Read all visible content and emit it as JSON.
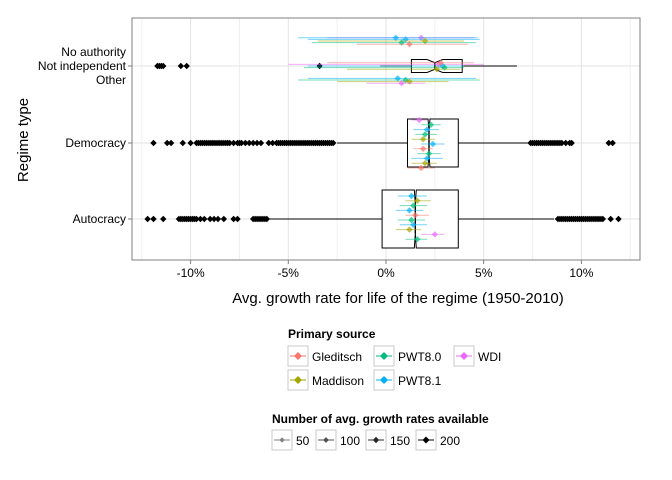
{
  "chart_data": {
    "type": "boxplot",
    "title": "",
    "xlabel": "Avg. growth rate for life of the regime (1950-2010)",
    "ylabel": "Regime type",
    "xlim": [
      -0.13,
      0.13
    ],
    "x_ticks": [
      {
        "value": -0.1,
        "label": "-10%"
      },
      {
        "value": -0.05,
        "label": "-5%"
      },
      {
        "value": 0.0,
        "label": "0%"
      },
      {
        "value": 0.05,
        "label": "5%"
      },
      {
        "value": 0.1,
        "label": "10%"
      }
    ],
    "categories": [
      {
        "key": "other_group",
        "lines": [
          "No authority",
          "Not independent",
          "Other"
        ]
      },
      {
        "key": "democracy",
        "lines": [
          "Democracy"
        ]
      },
      {
        "key": "autocracy",
        "lines": [
          "Autocracy"
        ]
      }
    ],
    "boxes": [
      {
        "category": "other_group",
        "q1": 0.013,
        "median": 0.025,
        "q3": 0.039,
        "notch_low": 0.021,
        "notch_high": 0.029,
        "whisker_low": -0.003,
        "whisker_high": 0.067
      },
      {
        "category": "democracy",
        "q1": 0.011,
        "median": 0.022,
        "q3": 0.037,
        "notch_low": 0.0215,
        "notch_high": 0.0225,
        "whisker_low": -0.025,
        "whisker_high": 0.073
      },
      {
        "category": "autocracy",
        "q1": -0.002,
        "median": 0.015,
        "q3": 0.037,
        "notch_low": 0.0145,
        "notch_high": 0.0155,
        "whisker_low": -0.06,
        "whisker_high": 0.086
      }
    ],
    "outliers": [
      {
        "category": "other_group",
        "values": [
          -0.117,
          -0.116,
          -0.115,
          -0.114,
          -0.105,
          -0.102,
          -0.034
        ]
      },
      {
        "category": "democracy",
        "values": [
          -0.119,
          -0.112,
          -0.11,
          -0.104,
          -0.1,
          -0.097,
          -0.096,
          -0.095,
          -0.094,
          -0.093,
          -0.092,
          -0.091,
          -0.09,
          -0.089,
          -0.088,
          -0.087,
          -0.086,
          -0.085,
          -0.084,
          -0.083,
          -0.082,
          -0.081,
          -0.08,
          -0.078,
          -0.076,
          -0.075,
          -0.074,
          -0.072,
          -0.07,
          -0.068,
          -0.066,
          -0.064,
          -0.06,
          -0.058,
          -0.056,
          -0.055,
          -0.054,
          -0.053,
          -0.052,
          -0.051,
          -0.05,
          -0.049,
          -0.048,
          -0.047,
          -0.046,
          -0.045,
          -0.044,
          -0.043,
          -0.042,
          -0.041,
          -0.04,
          -0.039,
          -0.038,
          -0.037,
          -0.036,
          -0.035,
          -0.034,
          -0.033,
          -0.032,
          -0.031,
          -0.03,
          -0.029,
          -0.028,
          -0.027,
          0.074,
          0.075,
          0.076,
          0.077,
          0.078,
          0.079,
          0.08,
          0.081,
          0.082,
          0.083,
          0.084,
          0.085,
          0.086,
          0.087,
          0.088,
          0.089,
          0.09,
          0.092,
          0.094,
          0.095,
          0.114,
          0.116
        ]
      },
      {
        "category": "autocracy",
        "values": [
          -0.122,
          -0.119,
          -0.114,
          -0.106,
          -0.105,
          -0.104,
          -0.103,
          -0.102,
          -0.101,
          -0.1,
          -0.099,
          -0.098,
          -0.097,
          -0.095,
          -0.093,
          -0.09,
          -0.088,
          -0.086,
          -0.083,
          -0.078,
          -0.076,
          -0.068,
          -0.067,
          -0.066,
          -0.065,
          -0.064,
          -0.063,
          -0.062,
          -0.061,
          0.088,
          0.089,
          0.09,
          0.091,
          0.092,
          0.093,
          0.094,
          0.095,
          0.096,
          0.097,
          0.098,
          0.099,
          0.1,
          0.101,
          0.102,
          0.103,
          0.104,
          0.105,
          0.106,
          0.107,
          0.108,
          0.109,
          0.11,
          0.111,
          0.115,
          0.119
        ]
      }
    ],
    "source_estimates": [
      {
        "category": "other_group",
        "row": "No authority",
        "source": "WDI",
        "value": 0.018,
        "lo": -0.03,
        "hi": 0.045
      },
      {
        "category": "other_group",
        "row": "No authority",
        "source": "PWT8.1",
        "value": 0.01,
        "lo": -0.04,
        "hi": 0.048
      },
      {
        "category": "other_group",
        "row": "No authority",
        "source": "Maddison",
        "value": 0.02,
        "lo": -0.035,
        "hi": 0.04
      },
      {
        "category": "other_group",
        "row": "No authority",
        "source": "PWT8.0",
        "value": 0.008,
        "lo": -0.038,
        "hi": 0.046
      },
      {
        "category": "other_group",
        "row": "No authority",
        "source": "Gleditsch",
        "value": 0.012,
        "lo": -0.015,
        "hi": 0.042
      },
      {
        "category": "other_group",
        "row": "No authority",
        "source": "PWT8.1",
        "value": 0.005,
        "lo": -0.045,
        "hi": 0.047
      },
      {
        "category": "other_group",
        "row": "Not independent",
        "source": "WDI",
        "value": 0.027,
        "lo": -0.05,
        "hi": 0.05
      },
      {
        "category": "other_group",
        "row": "Not independent",
        "source": "PWT8.1",
        "value": 0.029,
        "lo": -0.04,
        "hi": 0.04
      },
      {
        "category": "other_group",
        "row": "Not independent",
        "source": "PWT8.0",
        "value": 0.03,
        "lo": -0.042,
        "hi": 0.04
      },
      {
        "category": "other_group",
        "row": "Not independent",
        "source": "Maddison",
        "value": 0.026,
        "lo": -0.02,
        "hi": 0.038
      },
      {
        "category": "other_group",
        "row": "Not independent",
        "source": "Gleditsch",
        "value": 0.028,
        "lo": -0.03,
        "hi": 0.045
      },
      {
        "category": "other_group",
        "row": "Other",
        "source": "PWT8.1",
        "value": 0.006,
        "lo": -0.04,
        "hi": 0.046
      },
      {
        "category": "other_group",
        "row": "Other",
        "source": "PWT8.0",
        "value": 0.01,
        "lo": -0.045,
        "hi": 0.048
      },
      {
        "category": "other_group",
        "row": "Other",
        "source": "Maddison",
        "value": 0.012,
        "lo": -0.025,
        "hi": 0.032
      },
      {
        "category": "other_group",
        "row": "Other",
        "source": "WDI",
        "value": 0.008,
        "lo": -0.01,
        "hi": 0.02
      },
      {
        "category": "democracy",
        "source": "WDI",
        "value": 0.017,
        "lo": 0.013,
        "hi": 0.021
      },
      {
        "category": "democracy",
        "source": "PWT8.0",
        "value": 0.023,
        "lo": 0.018,
        "hi": 0.028
      },
      {
        "category": "democracy",
        "source": "PWT8.1",
        "value": 0.021,
        "lo": 0.014,
        "hi": 0.027
      },
      {
        "category": "democracy",
        "source": "PWT8.0",
        "value": 0.02,
        "lo": 0.015,
        "hi": 0.026
      },
      {
        "category": "democracy",
        "source": "Maddison",
        "value": 0.019,
        "lo": 0.013,
        "hi": 0.025
      },
      {
        "category": "democracy",
        "source": "PWT8.1",
        "value": 0.024,
        "lo": 0.018,
        "hi": 0.03
      },
      {
        "category": "democracy",
        "source": "Gleditsch",
        "value": 0.019,
        "lo": 0.014,
        "hi": 0.024
      },
      {
        "category": "democracy",
        "source": "PWT8.0",
        "value": 0.022,
        "lo": 0.016,
        "hi": 0.028
      },
      {
        "category": "democracy",
        "source": "PWT8.1",
        "value": 0.021,
        "lo": 0.013,
        "hi": 0.029
      },
      {
        "category": "democracy",
        "source": "Maddison",
        "value": 0.02,
        "lo": 0.013,
        "hi": 0.026
      },
      {
        "category": "democracy",
        "source": "Gleditsch",
        "value": 0.018,
        "lo": 0.011,
        "hi": 0.025
      },
      {
        "category": "autocracy",
        "source": "PWT8.1",
        "value": 0.013,
        "lo": 0.006,
        "hi": 0.021
      },
      {
        "category": "autocracy",
        "source": "Maddison",
        "value": 0.016,
        "lo": 0.01,
        "hi": 0.023
      },
      {
        "category": "autocracy",
        "source": "PWT8.0",
        "value": 0.014,
        "lo": 0.007,
        "hi": 0.021
      },
      {
        "category": "autocracy",
        "source": "PWT8.1",
        "value": 0.012,
        "lo": 0.005,
        "hi": 0.019
      },
      {
        "category": "autocracy",
        "source": "Gleditsch",
        "value": 0.015,
        "lo": 0.01,
        "hi": 0.022
      },
      {
        "category": "autocracy",
        "source": "PWT8.0",
        "value": 0.013,
        "lo": 0.006,
        "hi": 0.02
      },
      {
        "category": "autocracy",
        "source": "PWT8.1",
        "value": 0.014,
        "lo": 0.007,
        "hi": 0.021
      },
      {
        "category": "autocracy",
        "source": "Maddison",
        "value": 0.012,
        "lo": 0.005,
        "hi": 0.018
      },
      {
        "category": "autocracy",
        "source": "WDI",
        "value": 0.025,
        "lo": 0.018,
        "hi": 0.03
      },
      {
        "category": "autocracy",
        "source": "PWT8.0",
        "value": 0.016,
        "lo": 0.01,
        "hi": 0.021
      }
    ],
    "legend_sources": {
      "title": "Primary source",
      "placement": "bottom",
      "items": [
        {
          "label": "Gleditsch",
          "color": "#F8766D"
        },
        {
          "label": "Maddison",
          "color": "#A3A500"
        },
        {
          "label": "PWT8.0",
          "color": "#00BF7D"
        },
        {
          "label": "PWT8.1",
          "color": "#00B0F6"
        },
        {
          "label": "WDI",
          "color": "#E76BF3"
        }
      ]
    },
    "legend_counts": {
      "title": "Number of avg. growth rates available",
      "placement": "bottom",
      "items": [
        {
          "label": "50",
          "value": 50
        },
        {
          "label": "100",
          "value": 100
        },
        {
          "label": "150",
          "value": 150
        },
        {
          "label": "200",
          "value": 200
        }
      ]
    },
    "grid": true
  }
}
